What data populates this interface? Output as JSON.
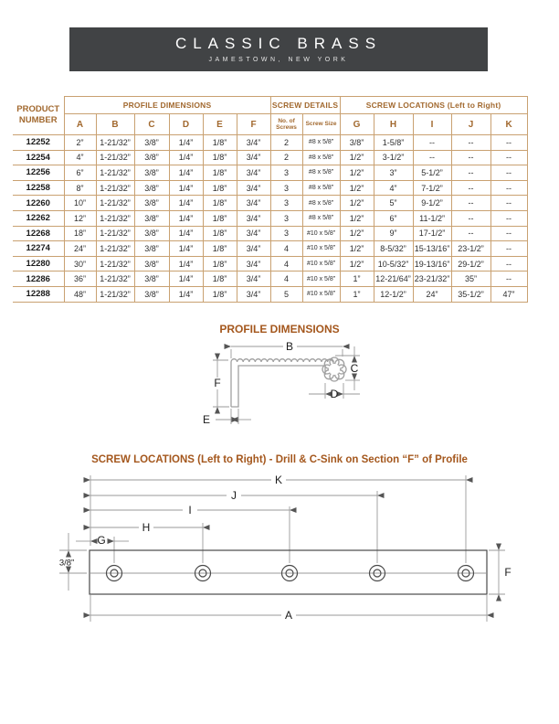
{
  "brand": {
    "title": "CLASSIC BRASS",
    "subtitle": "JAMESTOWN, NEW YORK"
  },
  "table": {
    "product_header": "PRODUCT NUMBER",
    "groups": {
      "profile": "PROFILE DIMENSIONS",
      "screw_details": "SCREW DETAILS",
      "screw_locations": "SCREW LOCATIONS (Left to Right)"
    },
    "sub_headers": [
      "A",
      "B",
      "C",
      "D",
      "E",
      "F",
      "No. of Screws",
      "Screw Size",
      "G",
      "H",
      "I",
      "J",
      "K"
    ],
    "rows": [
      [
        "12252",
        "2”",
        "1-21/32”",
        "3/8”",
        "1/4”",
        "1/8”",
        "3/4”",
        "2",
        "#8 x 5/8”",
        "3/8”",
        "1-5/8”",
        "--",
        "--",
        "--"
      ],
      [
        "12254",
        "4”",
        "1-21/32”",
        "3/8”",
        "1/4”",
        "1/8”",
        "3/4”",
        "2",
        "#8 x 5/8”",
        "1/2”",
        "3-1/2”",
        "--",
        "--",
        "--"
      ],
      [
        "12256",
        "6”",
        "1-21/32”",
        "3/8”",
        "1/4”",
        "1/8”",
        "3/4”",
        "3",
        "#8 x 5/8”",
        "1/2”",
        "3”",
        "5-1/2”",
        "--",
        "--"
      ],
      [
        "12258",
        "8”",
        "1-21/32”",
        "3/8”",
        "1/4”",
        "1/8”",
        "3/4”",
        "3",
        "#8 x 5/8”",
        "1/2”",
        "4”",
        "7-1/2”",
        "--",
        "--"
      ],
      [
        "12260",
        "10”",
        "1-21/32”",
        "3/8”",
        "1/4”",
        "1/8”",
        "3/4”",
        "3",
        "#8 x 5/8”",
        "1/2”",
        "5”",
        "9-1/2”",
        "--",
        "--"
      ],
      [
        "12262",
        "12”",
        "1-21/32”",
        "3/8”",
        "1/4”",
        "1/8”",
        "3/4”",
        "3",
        "#8 x 5/8”",
        "1/2”",
        "6”",
        "11-1/2”",
        "--",
        "--"
      ],
      [
        "12268",
        "18”",
        "1-21/32”",
        "3/8”",
        "1/4”",
        "1/8”",
        "3/4”",
        "3",
        "#10 x 5/8”",
        "1/2”",
        "9”",
        "17-1/2”",
        "--",
        "--"
      ],
      [
        "12274",
        "24”",
        "1-21/32”",
        "3/8”",
        "1/4”",
        "1/8”",
        "3/4”",
        "4",
        "#10 x 5/8”",
        "1/2”",
        "8-5/32”",
        "15-13/16”",
        "23-1/2”",
        "--"
      ],
      [
        "12280",
        "30”",
        "1-21/32”",
        "3/8”",
        "1/4”",
        "1/8”",
        "3/4”",
        "4",
        "#10 x 5/8”",
        "1/2”",
        "10-5/32”",
        "19-13/16”",
        "29-1/2”",
        "--"
      ],
      [
        "12286",
        "36”",
        "1-21/32”",
        "3/8”",
        "1/4”",
        "1/8”",
        "3/4”",
        "4",
        "#10 x 5/8”",
        "1”",
        "12-21/64”",
        "23-21/32”",
        "35”",
        "--"
      ],
      [
        "12288",
        "48”",
        "1-21/32”",
        "3/8”",
        "1/4”",
        "1/8”",
        "3/4”",
        "5",
        "#10 x 5/8”",
        "1”",
        "12-1/2”",
        "24”",
        "35-1/2”",
        "47”"
      ]
    ]
  },
  "profile_diagram": {
    "title": "PROFILE DIMENSIONS",
    "labels": {
      "B": "B",
      "C": "C",
      "D": "D",
      "E": "E",
      "F": "F"
    }
  },
  "screw_diagram": {
    "title": "SCREW LOCATIONS (Left to Right) - Drill & C-Sink on Section “F” of Profile",
    "labels": {
      "K": "K",
      "J": "J",
      "I": "I",
      "H": "H",
      "G": "G",
      "A": "A",
      "F": "F",
      "offset": "3/8”"
    }
  },
  "colors": {
    "brand_bg": "#414345",
    "accent_heading": "#a4571d",
    "table_header_text": "#a2692f",
    "table_border": "#c9a171"
  }
}
